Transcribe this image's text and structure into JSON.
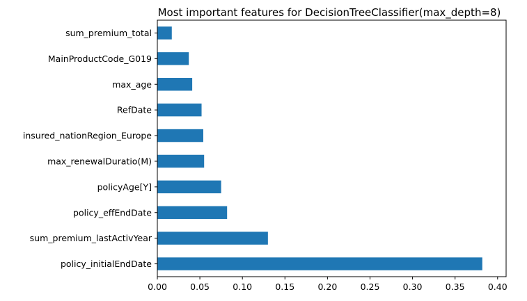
{
  "chart_data": {
    "type": "bar",
    "orientation": "horizontal",
    "title": "Most important features for DecisionTreeClassifier(max_depth=8)",
    "xlabel": "",
    "ylabel": "",
    "xlim": [
      0,
      0.41
    ],
    "xticks": [
      "0.00",
      "0.05",
      "0.10",
      "0.15",
      "0.20",
      "0.25",
      "0.30",
      "0.35",
      "0.40"
    ],
    "grid": false,
    "legend": "none",
    "bar_color": "#1f77b4",
    "categories": [
      "sum_premium_total",
      "MainProductCode_G019",
      "max_age",
      "RefDate",
      "insured_nationRegion_Europe",
      "max_renewalDuratio(M)",
      "policyAge[Y]",
      "policy_effEndDate",
      "sum_premium_lastActivYear",
      "policy_initialEndDate"
    ],
    "values": [
      0.017,
      0.037,
      0.041,
      0.052,
      0.054,
      0.055,
      0.075,
      0.082,
      0.13,
      0.382
    ]
  }
}
